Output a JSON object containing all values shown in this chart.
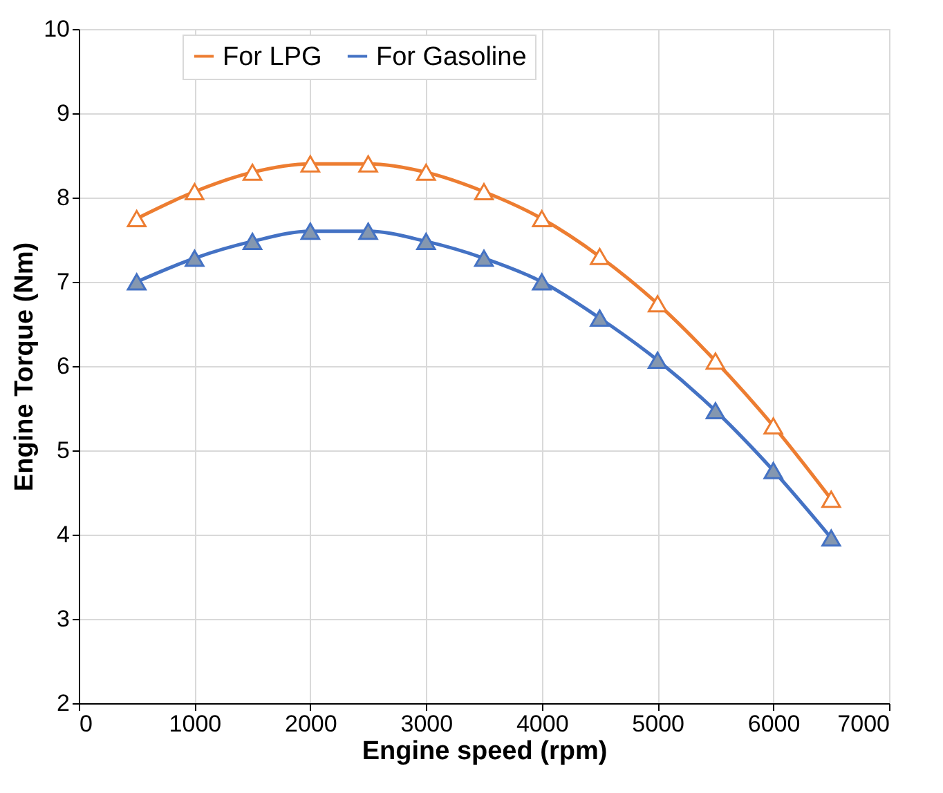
{
  "chart_data": {
    "type": "line",
    "xlabel": "Engine speed (rpm)",
    "ylabel": "Engine Torque (Nm)",
    "x": [
      500,
      1000,
      1500,
      2000,
      2500,
      3000,
      3500,
      4000,
      4500,
      5000,
      5500,
      6000,
      6500
    ],
    "series": [
      {
        "name": "For LPG",
        "color": "#ed7d31",
        "values": [
          7.75,
          8.07,
          8.3,
          8.4,
          8.4,
          8.3,
          8.07,
          7.75,
          7.3,
          6.74,
          6.06,
          5.29,
          4.42
        ]
      },
      {
        "name": "For Gasoline",
        "color": "#4472c4",
        "values": [
          7.0,
          7.28,
          7.48,
          7.6,
          7.6,
          7.48,
          7.28,
          7.0,
          6.57,
          6.07,
          5.47,
          4.76,
          3.96
        ]
      }
    ],
    "xlim": [
      0,
      7000
    ],
    "xticks": [
      0,
      1000,
      2000,
      3000,
      4000,
      5000,
      6000,
      7000
    ],
    "ylim": [
      2,
      10
    ],
    "yticks": [
      2,
      3,
      4,
      5,
      6,
      7,
      8,
      9,
      10
    ],
    "grid": true,
    "legend": "top",
    "marker": "triangle",
    "line_style": "solid"
  }
}
